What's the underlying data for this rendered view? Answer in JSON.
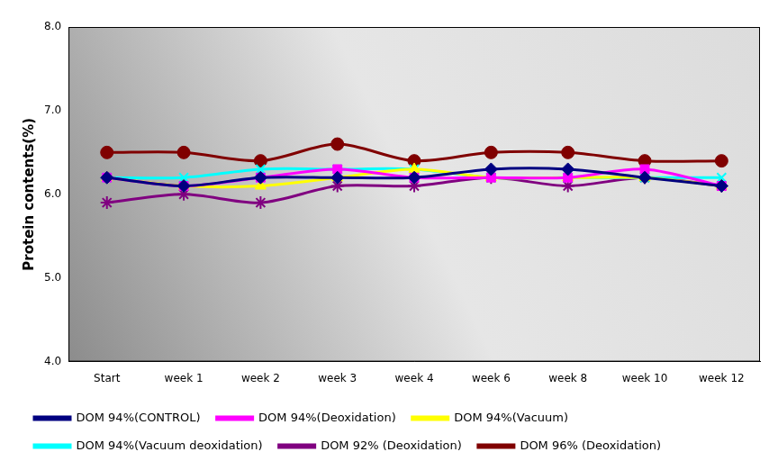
{
  "chart_data": {
    "type": "line",
    "y_label": "Protein contents(%)",
    "categories": [
      "Start",
      "week 1",
      "week 2",
      "week 3",
      "week 4",
      "week 6",
      "week 8",
      "week 10",
      "week 12"
    ],
    "series": [
      {
        "name": "DOM 94%(CONTROL)",
        "color": "#000080",
        "marker": "diamond",
        "values": [
          6.2,
          6.1,
          6.2,
          6.2,
          6.2,
          6.3,
          6.3,
          6.2,
          6.1
        ]
      },
      {
        "name": "DOM 94%(Deoxidation)",
        "color": "#ff00ff",
        "marker": "square",
        "values": [
          6.2,
          6.1,
          6.2,
          6.3,
          6.2,
          6.2,
          6.2,
          6.3,
          6.1
        ]
      },
      {
        "name": "DOM 94%(Vacuum)",
        "color": "#ffff00",
        "marker": "triangle",
        "values": [
          6.2,
          6.1,
          6.1,
          6.2,
          6.3,
          6.2,
          6.2,
          6.2,
          6.1
        ]
      },
      {
        "name": "DOM 94%(Vacuum deoxidation)",
        "color": "#00ffff",
        "marker": "cross",
        "values": [
          6.2,
          6.2,
          6.3,
          6.3,
          6.3,
          6.2,
          6.2,
          6.2,
          6.2
        ]
      },
      {
        "name": "DOM 92% (Deoxidation)",
        "color": "#800080",
        "marker": "star",
        "values": [
          5.9,
          6.0,
          5.9,
          6.1,
          6.1,
          6.2,
          6.1,
          6.2,
          6.1
        ]
      },
      {
        "name": "DOM 96% (Deoxidation)",
        "color": "#800000",
        "marker": "circle",
        "values": [
          6.5,
          6.5,
          6.4,
          6.6,
          6.4,
          6.5,
          6.5,
          6.4,
          6.4
        ]
      }
    ],
    "ylim": [
      4,
      8
    ],
    "yticks": [
      {
        "value": 4,
        "label": "4.0"
      },
      {
        "value": 5,
        "label": "5.0"
      },
      {
        "value": 6,
        "label": "6.0"
      },
      {
        "value": 7,
        "label": "7.0"
      },
      {
        "value": 8,
        "label": "8.0"
      }
    ],
    "grid": false,
    "legend": "bottom"
  }
}
